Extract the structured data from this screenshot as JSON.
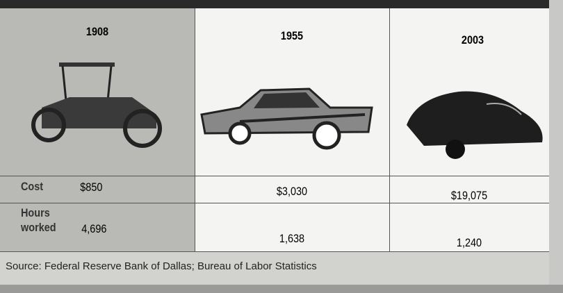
{
  "table": {
    "columns": [
      "1908",
      "1955",
      "2003"
    ],
    "rows": [
      {
        "label": "Cost",
        "values": [
          "$850",
          "$3,030",
          "$19,075"
        ]
      },
      {
        "label": "Hours worked",
        "values": [
          "4,696",
          "1,638",
          "1,240"
        ]
      }
    ]
  },
  "source": "Source: Federal Reserve Bank of Dallas; Bureau of Labor Statistics"
}
